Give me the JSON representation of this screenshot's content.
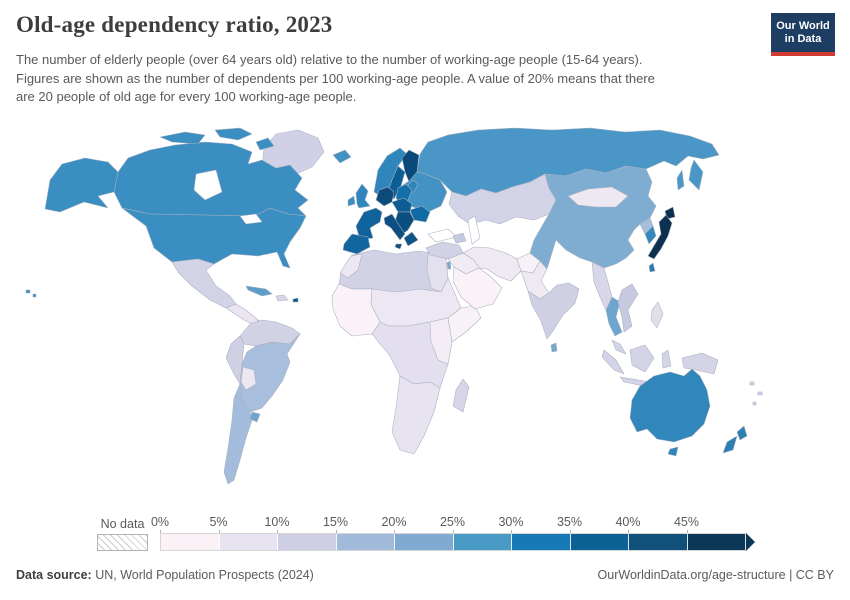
{
  "header": {
    "title": "Old-age dependency ratio, 2023",
    "subtitle_lines": [
      "The number of elderly people (over 64 years old) relative to the number of working-age people (15-64 years).",
      "Figures are shown as the number of dependents per 100 working-age people. A value of 20% means that there",
      "are 20 people of old age for every 100 working-age people."
    ],
    "logo": {
      "line1": "Our World",
      "line2": "in Data",
      "bg": "#1d3d63",
      "accent": "#d13b32"
    }
  },
  "legend": {
    "no_data_label": "No data",
    "ticks": [
      "0%",
      "5%",
      "10%",
      "15%",
      "20%",
      "25%",
      "30%",
      "35%",
      "40%",
      "45%"
    ]
  },
  "footer": {
    "source_label": "Data source:",
    "source_text": "UN, World Population Prospects (2024)",
    "right_text": "OurWorldinData.org/age-structure | CC BY"
  },
  "map": {
    "ocean_color": "#ffffff",
    "border_color": "#aab0bf"
  },
  "chart_data": {
    "type": "choropleth",
    "title": "Old-age dependency ratio, 2023",
    "unit": "dependents per 100 working-age people (%)",
    "legend_position": "bottom",
    "bins": [
      {
        "range": "0-5%",
        "color": "#fbf2f7"
      },
      {
        "range": "5-10%",
        "color": "#e8e3f0"
      },
      {
        "range": "10-15%",
        "color": "#cdcde3"
      },
      {
        "range": "15-20%",
        "color": "#a3bbda"
      },
      {
        "range": "20-25%",
        "color": "#7fabd3"
      },
      {
        "range": "25-30%",
        "color": "#4a9ac6"
      },
      {
        "range": "30-35%",
        "color": "#157ab5"
      },
      {
        "range": "35-40%",
        "color": "#0c6294"
      },
      {
        "range": "40-45%",
        "color": "#12507c"
      },
      {
        "range": "45%+",
        "color": "#0d3757"
      }
    ],
    "regions": {
      "canada": {
        "bin": "25-30%",
        "color": "#3a8ec1"
      },
      "usa": {
        "bin": "25-30%",
        "color": "#3a8ec1"
      },
      "greenland": {
        "bin": "10-15%",
        "color": "#d0d1e6"
      },
      "mexico": {
        "bin": "10-15%",
        "color": "#d3d3e6"
      },
      "central-america": {
        "bin": "5-10%",
        "color": "#eae5f1"
      },
      "costa-rica-panama": {
        "bin": "20-25%",
        "color": "#74a9cf"
      },
      "cuba": {
        "bin": "20-25%",
        "color": "#5b9fc9"
      },
      "hispaniola": {
        "bin": "10-15%",
        "color": "#d6d5e8"
      },
      "puerto-rico": {
        "bin": "35-40%",
        "color": "#0b5a8c"
      },
      "northern-south-america": {
        "bin": "10-15%",
        "color": "#d2d2e5"
      },
      "brazil": {
        "bin": "15-20%",
        "color": "#a8bedd"
      },
      "peru-ecuador": {
        "bin": "10-15%",
        "color": "#cfd0e4"
      },
      "bolivia-paraguay": {
        "bin": "5-10%",
        "color": "#ebe6f1"
      },
      "argentina-chile": {
        "bin": "15-20%",
        "color": "#a4bcdb"
      },
      "uruguay": {
        "bin": "20-25%",
        "color": "#6ea6d0"
      },
      "iceland": {
        "bin": "25-30%",
        "color": "#4191c3"
      },
      "ireland": {
        "bin": "25-30%",
        "color": "#3b8fc1"
      },
      "uk": {
        "bin": "25-30%",
        "color": "#2e86bc"
      },
      "norway": {
        "bin": "25-30%",
        "color": "#2e86bc"
      },
      "sweden": {
        "bin": "30-35%",
        "color": "#0c5f95"
      },
      "finland": {
        "bin": "40-45%",
        "color": "#094a7a"
      },
      "denmark": {
        "bin": "30-35%",
        "color": "#0b5a8c"
      },
      "baltics": {
        "bin": "30-35%",
        "color": "#2d83ba"
      },
      "poland": {
        "bin": "25-30%",
        "color": "#1470ab"
      },
      "ukraine-belarus": {
        "bin": "25-30%",
        "color": "#4292c4"
      },
      "romania-bulgaria": {
        "bin": "30-35%",
        "color": "#0f6ba3"
      },
      "central-europe": {
        "bin": "30-35%",
        "color": "#0d5c92"
      },
      "germany": {
        "bin": "35-40%",
        "color": "#0c4a7c"
      },
      "france": {
        "bin": "35-40%",
        "color": "#10629c"
      },
      "iberia": {
        "bin": "30-35%",
        "color": "#11669f"
      },
      "italy": {
        "bin": "35-40%",
        "color": "#0d4f83"
      },
      "balkans": {
        "bin": "35-40%",
        "color": "#0b4f80"
      },
      "greece": {
        "bin": "35-40%",
        "color": "#0e5586"
      },
      "russia": {
        "bin": "20-25%",
        "color": "#4a97c7"
      },
      "kazakhstan-central-asia": {
        "bin": "10-15%",
        "color": "#d2d3e6"
      },
      "caucasus": {
        "bin": "10-15%",
        "color": "#c3c9e0"
      },
      "turkey": {
        "bin": "10-15%",
        "color": "#d1d2e5"
      },
      "syria-iraq": {
        "bin": "5-10%",
        "color": "#f1ebf4"
      },
      "israel": {
        "bin": "20-25%",
        "color": "#74a9cf"
      },
      "arabia": {
        "bin": "0-5%",
        "color": "#fbf2f8"
      },
      "iran": {
        "bin": "5-10%",
        "color": "#efe9f2"
      },
      "afghanistan": {
        "bin": "0-5%",
        "color": "#f8f1f7"
      },
      "pakistan": {
        "bin": "5-10%",
        "color": "#efe9f2"
      },
      "india": {
        "bin": "10-15%",
        "color": "#cfd0e4"
      },
      "sri-lanka": {
        "bin": "20-25%",
        "color": "#74a9cf"
      },
      "china": {
        "bin": "20-25%",
        "color": "#7fadd2"
      },
      "mongolia": {
        "bin": "5-10%",
        "color": "#ede8f2"
      },
      "north-korea": {
        "bin": "15-20%",
        "color": "#a6bddb"
      },
      "south-korea": {
        "bin": "25-30%",
        "color": "#3389bd"
      },
      "japan": {
        "bin": "45%+",
        "color": "#0e304f"
      },
      "taiwan": {
        "bin": "25-30%",
        "color": "#2a7cb2"
      },
      "myanmar": {
        "bin": "10-15%",
        "color": "#d8d7e9"
      },
      "thailand": {
        "bin": "20-25%",
        "color": "#6da5cf"
      },
      "vietnam": {
        "bin": "10-15%",
        "color": "#c6c9e0"
      },
      "malaysia": {
        "bin": "10-15%",
        "color": "#d3d4e7"
      },
      "indonesia": {
        "bin": "10-15%",
        "color": "#d3d4e7"
      },
      "philippines": {
        "bin": "5-10%",
        "color": "#e2dfed"
      },
      "new-guinea": {
        "bin": "5-10%",
        "color": "#d4d4e6"
      },
      "pacific-islands": {
        "bin": "10-15%",
        "color": "#cfd0e4"
      },
      "australia": {
        "bin": "25-30%",
        "color": "#3186bb"
      },
      "new-zealand": {
        "bin": "25-30%",
        "color": "#2e7fb4"
      },
      "north-africa": {
        "bin": "10-15%",
        "color": "#d1d2e5"
      },
      "morocco": {
        "bin": "5-10%",
        "color": "#ece7f2"
      },
      "egypt": {
        "bin": "5-10%",
        "color": "#e4e0ee"
      },
      "west-africa": {
        "bin": "0-5%",
        "color": "#faf2f8"
      },
      "sahel-sudan": {
        "bin": "5-10%",
        "color": "#ece7f2"
      },
      "horn-of-africa": {
        "bin": "0-5%",
        "color": "#f8f1f7"
      },
      "central-africa": {
        "bin": "5-10%",
        "color": "#e3dfee"
      },
      "east-africa": {
        "bin": "0-5%",
        "color": "#f4edf5"
      },
      "southern-africa": {
        "bin": "5-10%",
        "color": "#e7e3f0"
      },
      "madagascar": {
        "bin": "10-15%",
        "color": "#d7d6e8"
      }
    }
  }
}
